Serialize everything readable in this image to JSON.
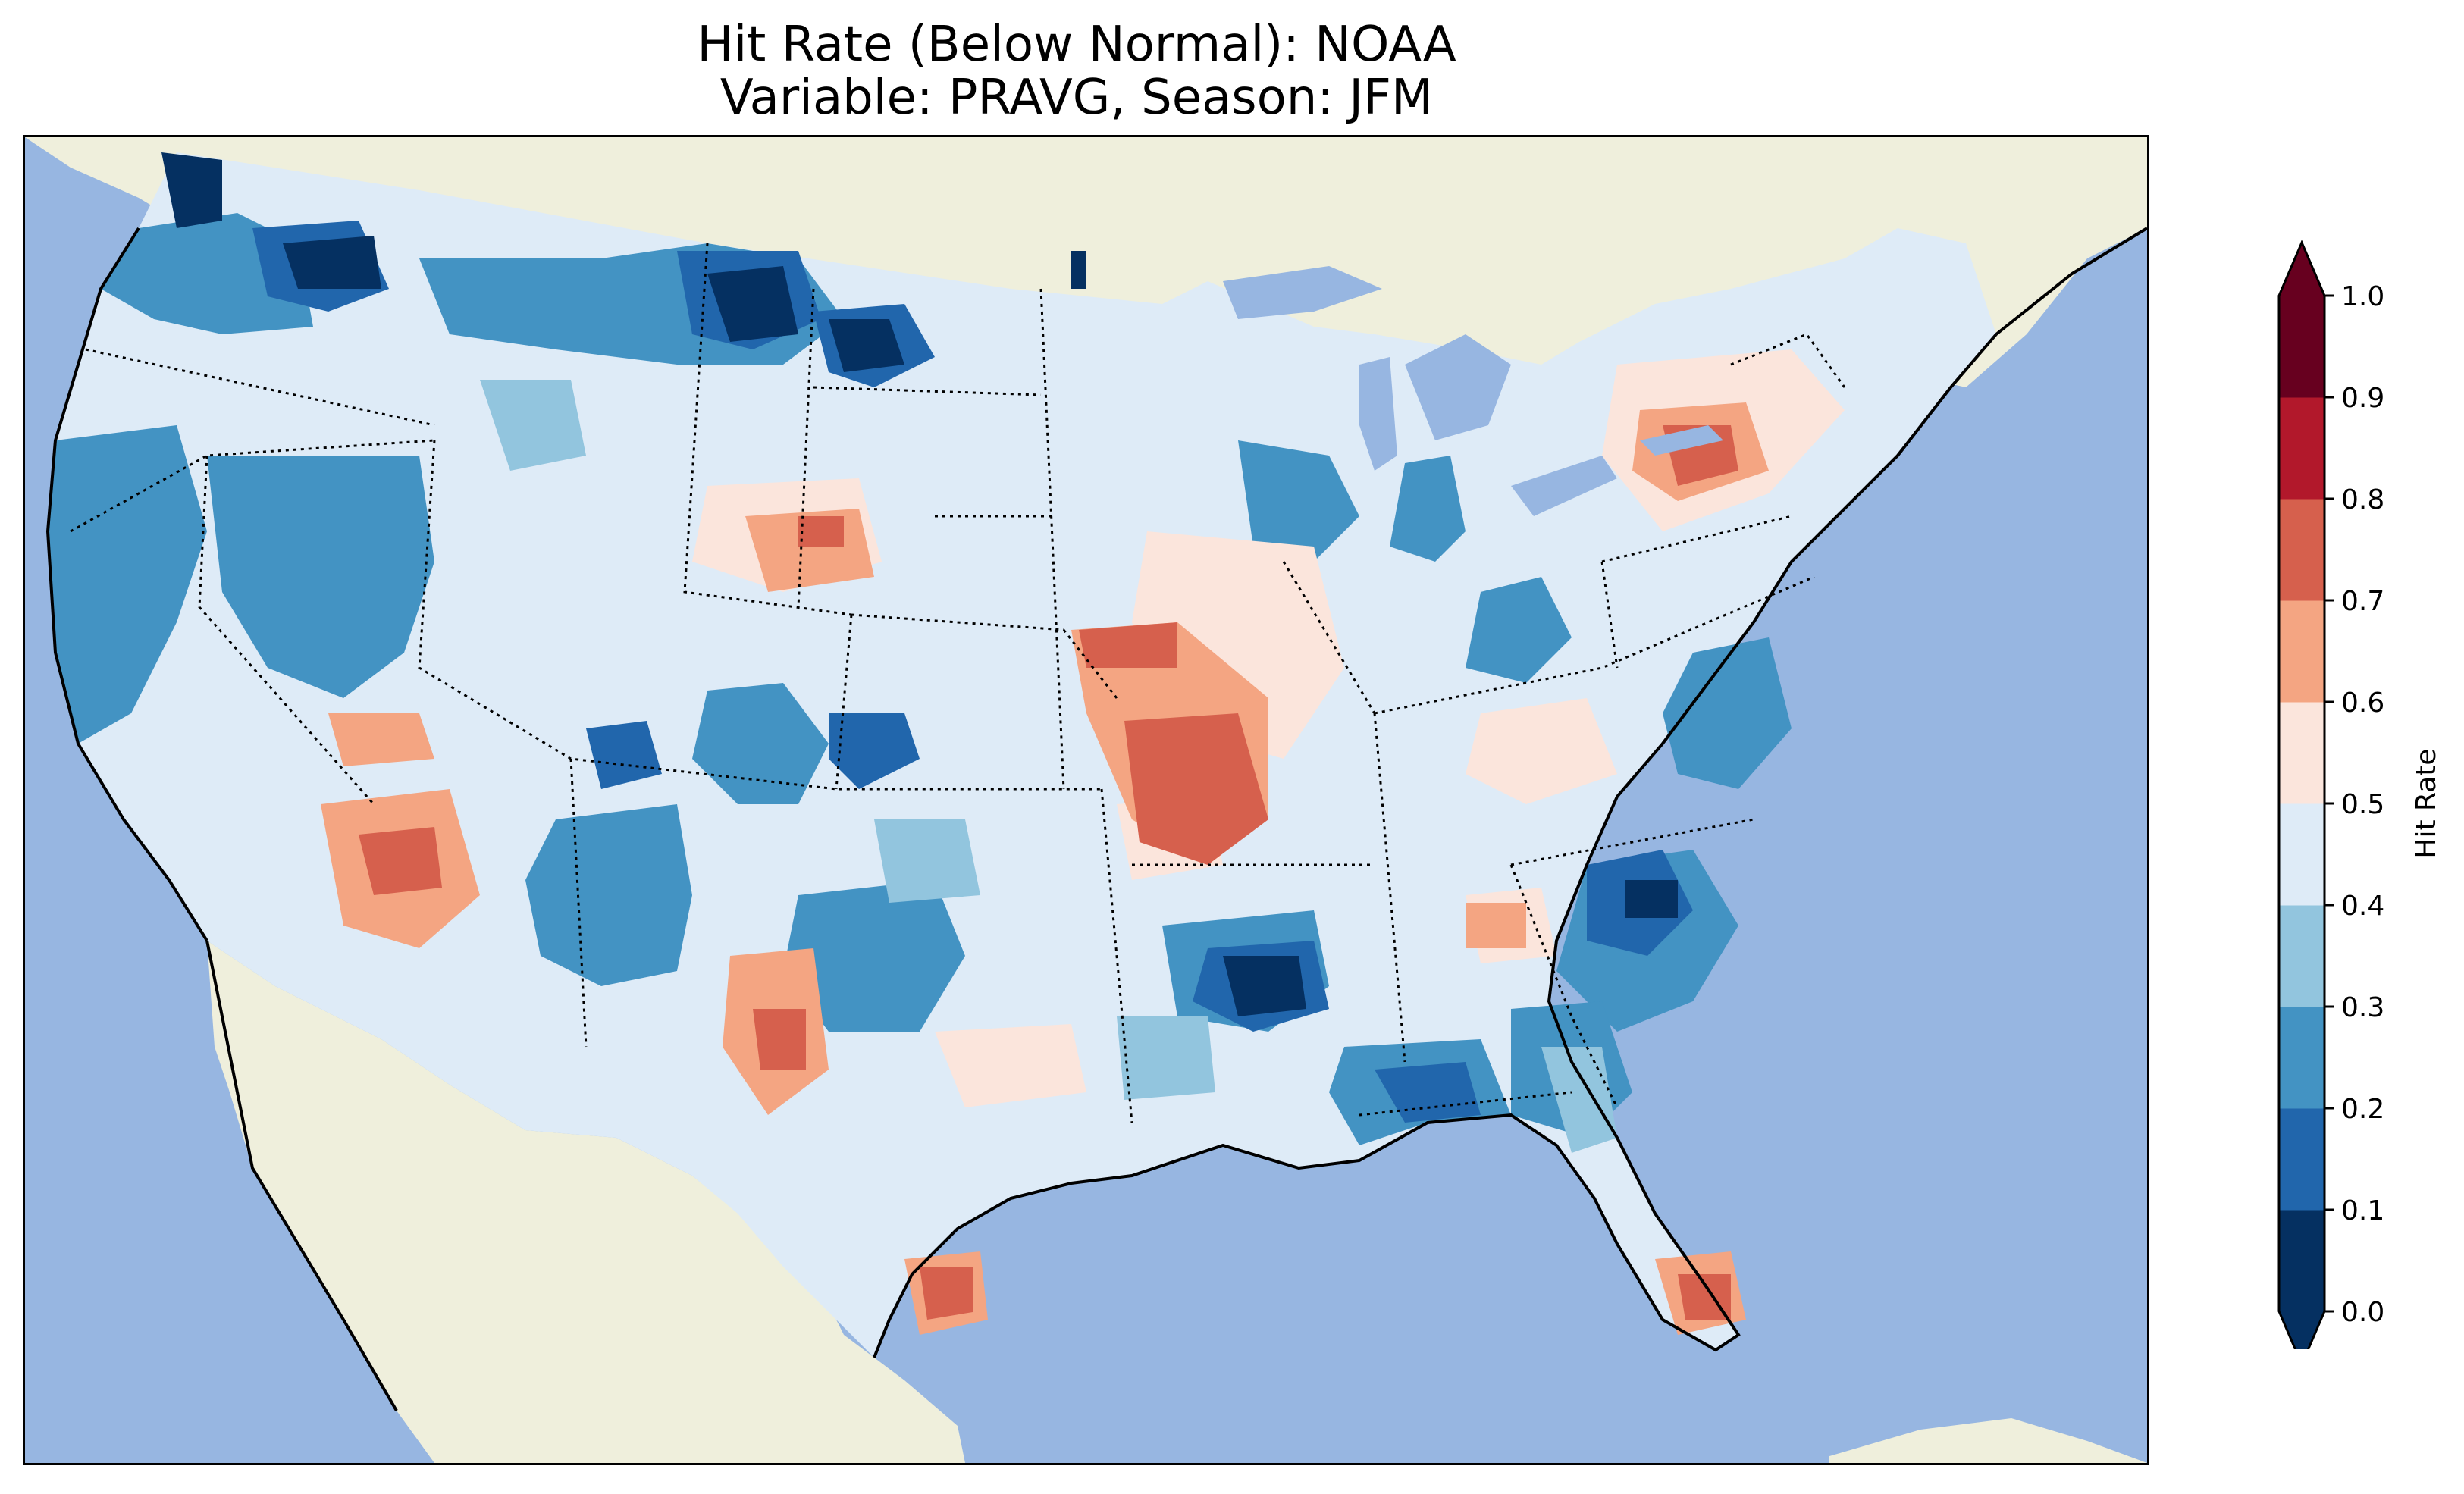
{
  "title": {
    "line1": "Hit Rate (Below Normal): NOAA",
    "line2": "Variable: PRAVG, Season: JFM"
  },
  "colors": {
    "ocean": "#97b6e1",
    "land": "#efefdc",
    "lakes": "#97b6e1",
    "coastline": "#000000",
    "state_borders": "#000000"
  },
  "colorbar": {
    "label": "Hit Rate",
    "ticks": [
      "0.0",
      "0.1",
      "0.2",
      "0.3",
      "0.4",
      "0.5",
      "0.6",
      "0.7",
      "0.8",
      "0.9",
      "1.0"
    ],
    "bins": [
      {
        "min": 0.0,
        "max": 0.1,
        "color": "#053061"
      },
      {
        "min": 0.1,
        "max": 0.2,
        "color": "#2166ac"
      },
      {
        "min": 0.2,
        "max": 0.3,
        "color": "#4393c3"
      },
      {
        "min": 0.3,
        "max": 0.4,
        "color": "#92c5de"
      },
      {
        "min": 0.4,
        "max": 0.5,
        "color": "#deebf7"
      },
      {
        "min": 0.5,
        "max": 0.6,
        "color": "#fbe5dc"
      },
      {
        "min": 0.6,
        "max": 0.7,
        "color": "#f4a582"
      },
      {
        "min": 0.7,
        "max": 0.8,
        "color": "#d6604d"
      },
      {
        "min": 0.8,
        "max": 0.9,
        "color": "#b2182b"
      },
      {
        "min": 0.9,
        "max": 1.0,
        "color": "#67001f"
      }
    ],
    "under_color": "#053061",
    "over_color": "#67001f",
    "extend": "both"
  },
  "map": {
    "projection": "Lambert Conformal (CONUS)",
    "region": "Contiguous United States",
    "field": "Hit Rate (Below Normal)",
    "variable": "PRAVG",
    "season": "JFM",
    "features": [
      "ocean",
      "land",
      "lakes",
      "coastlines",
      "state borders",
      "country borders"
    ]
  }
}
